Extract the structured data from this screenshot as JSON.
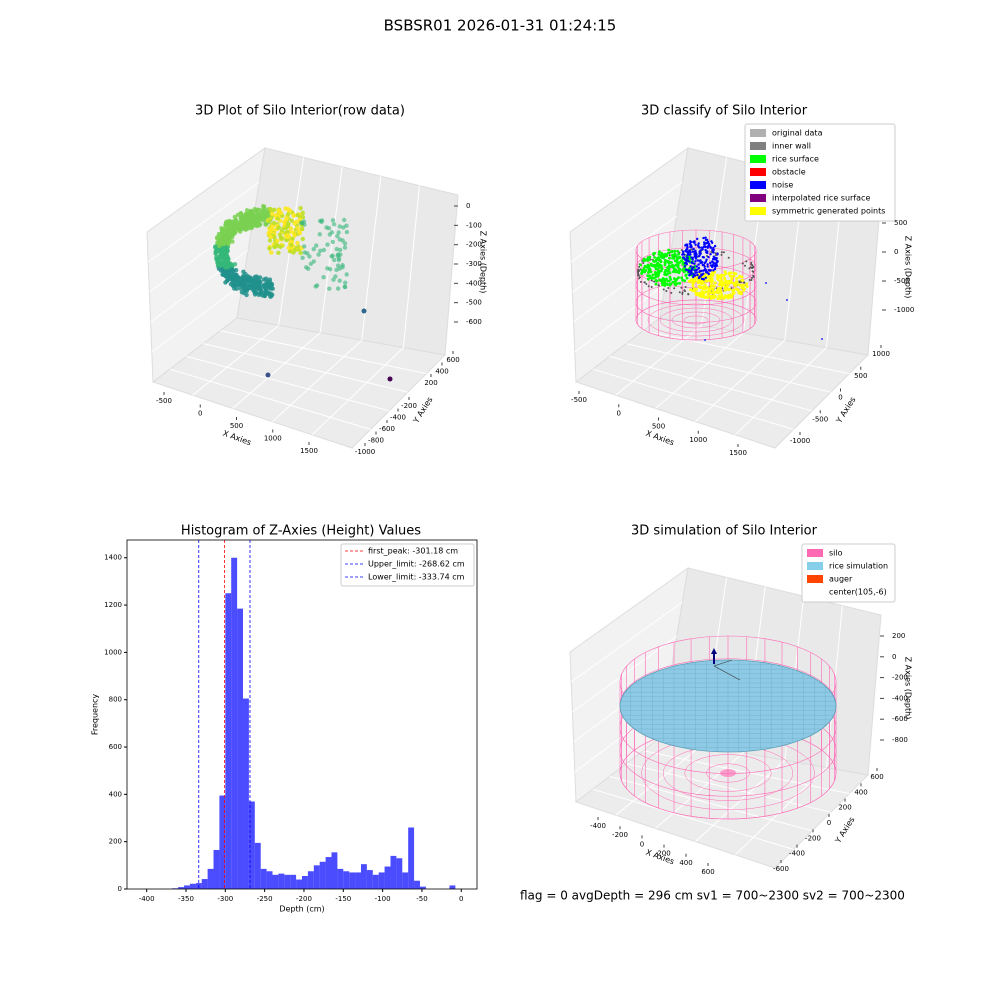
{
  "title": "BSBSR01 2026-01-31 01:24:15",
  "status": "flag = 0     avgDepth = 296 cm  sv1 = 700~2300  sv2 = 700~2300",
  "chart_data": [
    {
      "type": "scatter3d",
      "title": "3D Plot of Silo Interior(row data)",
      "xlabel": "X Axies",
      "ylabel": "Y Axies",
      "zlabel": "Z Axies (Depth)",
      "xticks": [
        -500,
        0,
        500,
        1000,
        1500
      ],
      "yticks": [
        600,
        400,
        200,
        -200,
        -400,
        -600,
        -800,
        -1000
      ],
      "zticks": [
        0,
        -100,
        -200,
        -300,
        -400,
        -500,
        -600
      ]
    },
    {
      "type": "scatter3d",
      "title": "3D classify of Silo Interior",
      "xlabel": "X Axies",
      "ylabel": "Y Axies",
      "zlabel": "Z Axies (Depth)",
      "xticks": [
        -500,
        0,
        500,
        1000,
        1500
      ],
      "yticks": [
        1000,
        500,
        0,
        -500,
        -1000
      ],
      "zticks": [
        500,
        0,
        -500,
        -1000
      ],
      "legend": [
        {
          "name": "original data",
          "color": "#b0b0b0"
        },
        {
          "name": "inner wall",
          "color": "#808080"
        },
        {
          "name": "rice surface",
          "color": "#00ff00"
        },
        {
          "name": "obstacle",
          "color": "#ff0000"
        },
        {
          "name": "noise",
          "color": "#0000ff"
        },
        {
          "name": "interpolated rice surface",
          "color": "#800080"
        },
        {
          "name": "symmetric generated points",
          "color": "#ffff00"
        }
      ]
    },
    {
      "type": "histogram",
      "title": "Histogram of Z-Axies (Height) Values",
      "xlabel": "Depth (cm)",
      "ylabel": "Frequency",
      "color": "#0000ff",
      "alpha": 0.7,
      "bins": [
        -367.5,
        -360,
        -352.5,
        -345,
        -337.5,
        -330,
        -322.5,
        -315,
        -307.5,
        -300,
        -292.5,
        -285,
        -277.5,
        -270,
        -262.5,
        -255,
        -247.5,
        -240,
        -232.5,
        -225,
        -217.5,
        -210,
        -202.5,
        -195,
        -187.5,
        -180,
        -172.5,
        -165,
        -157.5,
        -150,
        -142.5,
        -135,
        -127.5,
        -120,
        -112.5,
        -105,
        -97.5,
        -90,
        -82.5,
        -75,
        -67.5,
        -60,
        -52.5,
        -45,
        -37.5,
        -30,
        -22.5,
        -15,
        -7.5,
        0
      ],
      "values": [
        3,
        8,
        15,
        22,
        25,
        42,
        85,
        165,
        395,
        1250,
        1400,
        1185,
        805,
        370,
        195,
        85,
        75,
        60,
        65,
        60,
        60,
        40,
        55,
        75,
        100,
        115,
        135,
        155,
        85,
        75,
        70,
        70,
        105,
        80,
        60,
        70,
        95,
        140,
        130,
        70,
        260,
        35,
        10,
        0,
        0,
        0,
        0,
        15,
        0
      ],
      "lines": [
        {
          "name": "first_peak: -301.18 cm",
          "value": -301.18,
          "color": "#ff0000"
        },
        {
          "name": "Upper_limit: -268.62 cm",
          "value": -268.62,
          "color": "#0000ff"
        },
        {
          "name": "Lower_limit: -333.74 cm",
          "value": -333.74,
          "color": "#0000ff"
        }
      ],
      "xlim": [
        -425,
        20
      ],
      "ylim": [
        0,
        1475
      ],
      "xticks": [
        -400,
        -350,
        -300,
        -250,
        -200,
        -150,
        -100,
        -50,
        0
      ],
      "yticks": [
        0,
        200,
        400,
        600,
        800,
        1000,
        1200,
        1400
      ]
    },
    {
      "type": "surface3d",
      "title": "3D simulation of Silo Interior",
      "xlabel": "X Axies",
      "ylabel": "Y Axies",
      "zlabel": "Z Axies (Depth)",
      "xticks": [
        -400,
        -200,
        0,
        200,
        400,
        600
      ],
      "yticks": [
        600,
        400,
        200,
        0,
        -200,
        -400,
        -600
      ],
      "zticks": [
        200,
        0,
        -200,
        -400,
        -600,
        -800
      ],
      "legend": [
        {
          "name": "silo",
          "color": "#ff69b4"
        },
        {
          "name": "rice simulation",
          "color": "#87ceeb"
        },
        {
          "name": "auger",
          "color": "#ff4500"
        },
        {
          "name": "center(105,-6)"
        }
      ]
    }
  ]
}
